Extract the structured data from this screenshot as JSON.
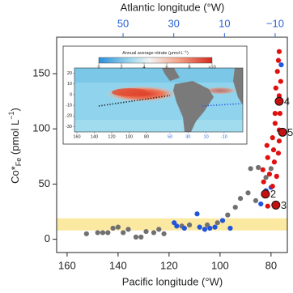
{
  "chart_data": {
    "type": "scatter",
    "xlabel": "Pacific longitude (°W)",
    "x2label": "Atlantic longitude (°W)",
    "ylabel": {
      "main": "Co*",
      "sub": "Fe",
      "unit": " (pmol L",
      "sup": "−1",
      "close": ")"
    },
    "xlim": [
      164.1,
      73.6
    ],
    "xticks": [
      160,
      140,
      120,
      100,
      80
    ],
    "x2lim": [
      76.2,
      -14.8
    ],
    "x2ticks": [
      50,
      30,
      10,
      {
        "value": -10,
        "label": "−10"
      }
    ],
    "ylim": [
      -12,
      183
    ],
    "yticks": [
      0,
      50,
      100,
      150
    ],
    "band": [
      8,
      19
    ],
    "band_color": "#fbe9a2",
    "axis2_color": "#2a62d6",
    "series": [
      {
        "color": "#707070",
        "x": [
          152.4,
          148,
          146,
          144,
          142,
          140,
          138,
          136,
          133,
          131,
          129,
          126,
          124,
          122,
          115,
          112,
          105,
          101,
          97,
          94,
          92,
          89,
          86,
          88,
          85,
          82,
          80
        ],
        "values": [
          5,
          6,
          6,
          6,
          10,
          11,
          6,
          9,
          2,
          2,
          7,
          6,
          9,
          5,
          12,
          13,
          13,
          15,
          22,
          29,
          37,
          42,
          35,
          64,
          65,
          56,
          64
        ]
      },
      {
        "color": "#2255dd",
        "x": [
          118,
          117,
          114,
          109,
          108,
          106,
          104,
          102,
          99,
          96,
          84,
          82,
          80,
          76
        ],
        "values": [
          15,
          12,
          10,
          23,
          11,
          9,
          10,
          11,
          17,
          10,
          32,
          44,
          47,
          158
        ]
      },
      {
        "color": "#e01010",
        "x": [
          76.8,
          77.1,
          77.5,
          76.2,
          78.1,
          76.8,
          78.4,
          76.5,
          78.4,
          76.8,
          79.4,
          76.8,
          81.6,
          79,
          77.1,
          81.3,
          78.7,
          83.2,
          80.6,
          77.8,
          82.9,
          79.4,
          81.3,
          77.8
        ],
        "values": [
          170,
          162,
          152,
          143,
          137,
          130,
          114,
          114,
          105,
          99,
          92,
          89,
          85,
          81,
          78,
          74,
          70,
          63,
          59,
          57,
          52,
          48,
          30,
          31
        ]
      }
    ],
    "labeled": {
      "color": "#c41010",
      "x": [
        82.2,
        78.1,
        76.8,
        75.5
      ],
      "values": [
        41,
        31,
        125,
        97
      ],
      "labels": [
        2,
        3,
        4,
        5
      ]
    },
    "inset": {
      "title": "Annual average nitrate (μmol L",
      "title_sup": "−1",
      "title_close": ")",
      "cticks": [
        0,
        2,
        4,
        6,
        8,
        {
          "value": 10,
          "label": ">10"
        }
      ],
      "lat_ticks": [
        20,
        10,
        0,
        -10,
        -20,
        -30
      ],
      "lon_ticks": [
        160,
        140,
        120,
        100,
        80
      ],
      "lon2_ticks": [
        50,
        30,
        10,
        -10
      ]
    }
  }
}
